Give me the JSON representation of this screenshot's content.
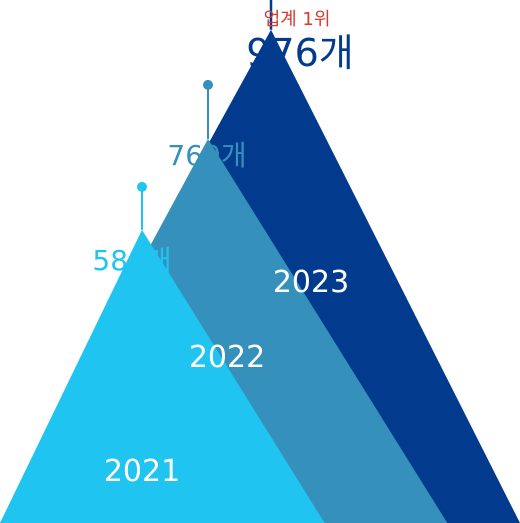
{
  "chart_data": {
    "type": "area",
    "title": "",
    "xlabel": "",
    "ylabel": "",
    "categories": [
      "2021",
      "2022",
      "2023"
    ],
    "values": [
      580,
      760,
      976
    ],
    "unit": "개",
    "value_labels": [
      "580개",
      "760개",
      "976개"
    ],
    "highlight": {
      "text": "업계 1위",
      "category": "2023"
    },
    "colors": [
      "#20c4f0",
      "#3690bc",
      "#023b8e"
    ],
    "label_colors": [
      "#20c4f0",
      "#3690bc",
      "#023b8e"
    ],
    "highlight_color": "#d93a30"
  }
}
